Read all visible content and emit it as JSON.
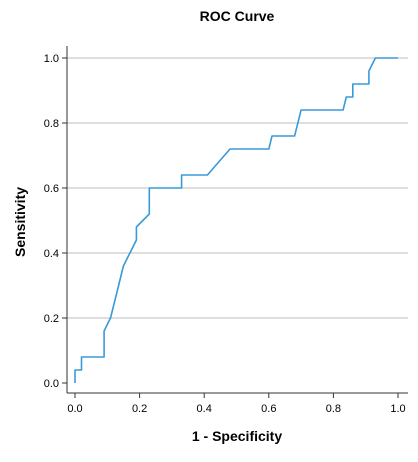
{
  "chart_data": {
    "type": "line",
    "title": "ROC Curve",
    "xlabel": "1 - Specificity",
    "ylabel": "Sensitivity",
    "xlim": [
      0.0,
      1.0
    ],
    "ylim": [
      0.0,
      1.0
    ],
    "xticks": [
      0.0,
      0.2,
      0.4,
      0.6,
      0.8,
      1.0
    ],
    "yticks": [
      0.0,
      0.2,
      0.4,
      0.6,
      0.8,
      1.0
    ],
    "xtick_labels": [
      "0.0",
      "0.2",
      "0.4",
      "0.6",
      "0.8",
      "1.0"
    ],
    "ytick_labels": [
      "0.0",
      "0.2",
      "0.4",
      "0.6",
      "0.8",
      "1.0"
    ],
    "grid": "horizontal",
    "legend": "none",
    "series": [
      {
        "color": "#3a9ad9",
        "x": [
          0.0,
          0.0,
          0.02,
          0.02,
          0.09,
          0.09,
          0.11,
          0.11,
          0.13,
          0.13,
          0.15,
          0.17,
          0.19,
          0.19,
          0.23,
          0.23,
          0.33,
          0.33,
          0.41,
          0.48,
          0.6,
          0.61,
          0.68,
          0.7,
          0.83,
          0.84,
          0.86,
          0.86,
          0.91,
          0.91,
          0.93,
          1.0
        ],
        "y": [
          0.0,
          0.04,
          0.04,
          0.08,
          0.08,
          0.16,
          0.2,
          0.2,
          0.28,
          0.28,
          0.36,
          0.4,
          0.44,
          0.48,
          0.52,
          0.6,
          0.6,
          0.64,
          0.64,
          0.72,
          0.72,
          0.76,
          0.76,
          0.84,
          0.84,
          0.88,
          0.88,
          0.92,
          0.92,
          0.96,
          1.0,
          1.0
        ]
      }
    ]
  }
}
